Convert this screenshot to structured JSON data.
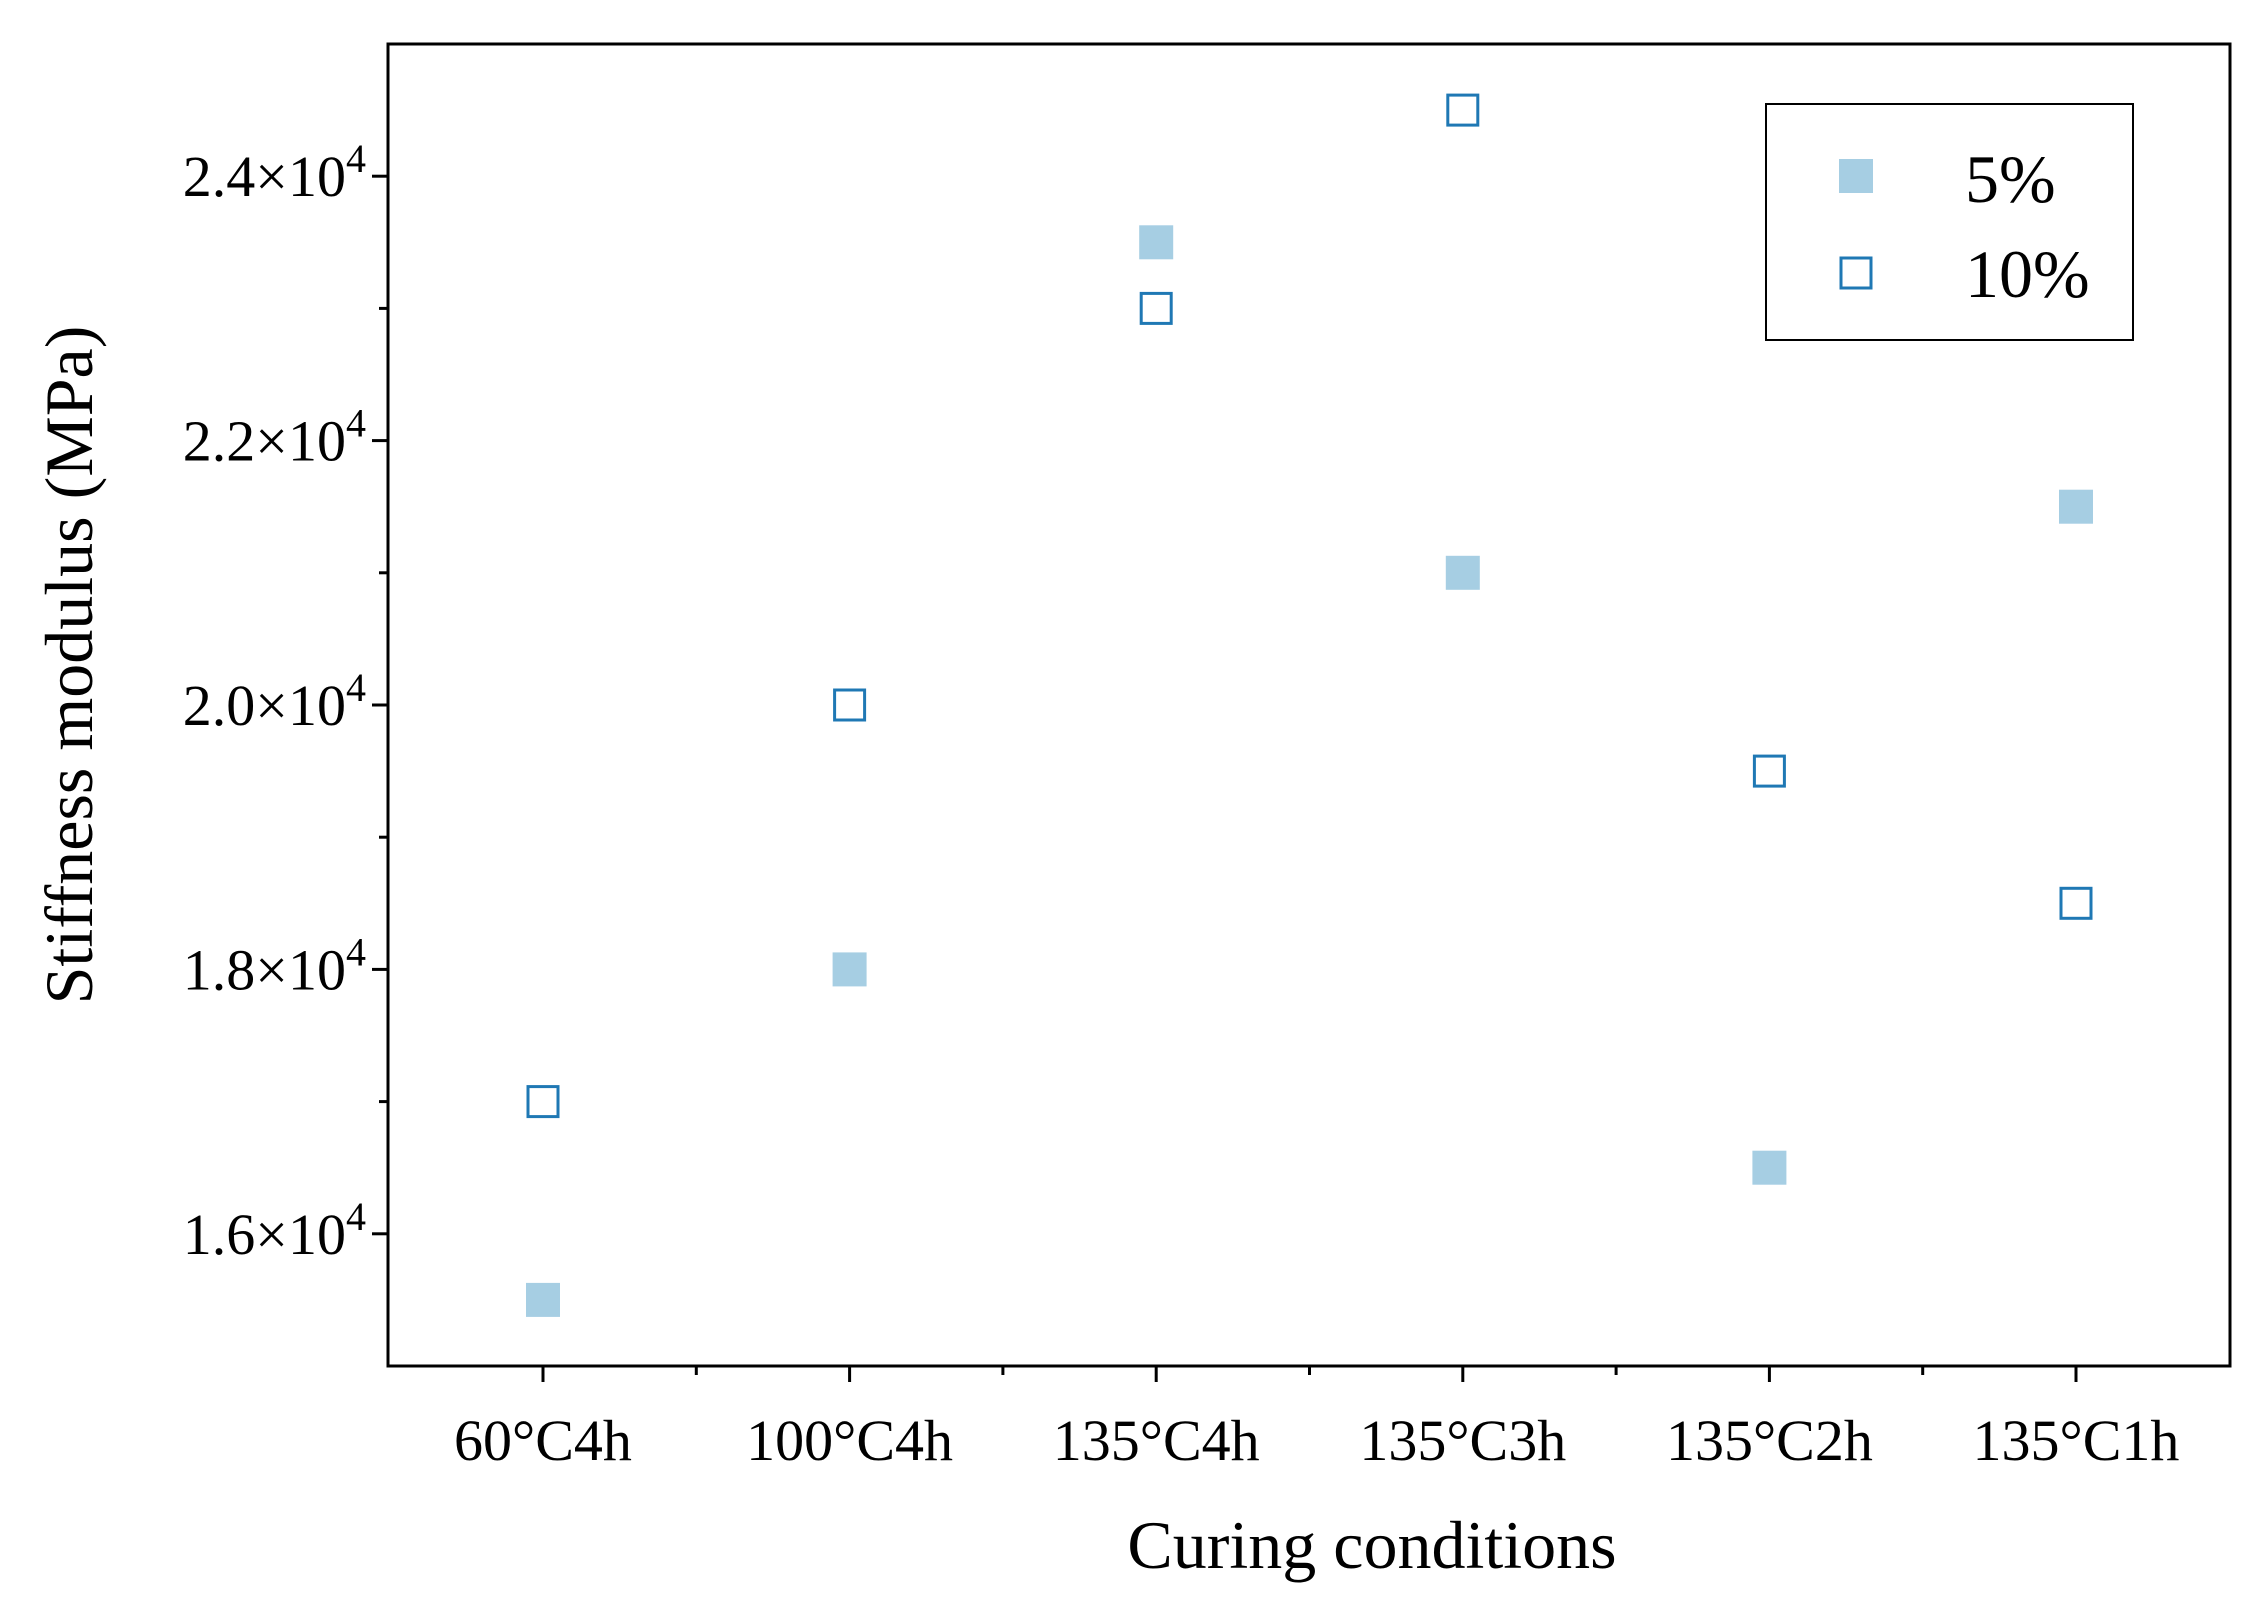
{
  "chart_data": {
    "type": "scatter",
    "title": "",
    "xlabel": "Curing conditions",
    "ylabel": "Stiffness modulus (MPa)",
    "categories": [
      "60°C4h",
      "100°C4h",
      "135°C4h",
      "135°C3h",
      "135°C2h",
      "135°C1h"
    ],
    "ylim": [
      15000,
      25000
    ],
    "y_major_ticks": [
      {
        "value": 16000,
        "mantissa": "1.6",
        "exponent": "4"
      },
      {
        "value": 18000,
        "mantissa": "1.8",
        "exponent": "4"
      },
      {
        "value": 20000,
        "mantissa": "2.0",
        "exponent": "4"
      },
      {
        "value": 22000,
        "mantissa": "2.2",
        "exponent": "4"
      },
      {
        "value": 24000,
        "mantissa": "2.4",
        "exponent": "4"
      }
    ],
    "y_minor_ticks": [
      17000,
      19000,
      21000,
      23000
    ],
    "legend_position": "top-right",
    "series": [
      {
        "name": "5%",
        "marker": "filled-square",
        "color": "#a6cee3",
        "values": [
          15500,
          18000,
          23500,
          21000,
          16500,
          21500
        ]
      },
      {
        "name": "10%",
        "marker": "open-square",
        "color": "#1f78b4",
        "values": [
          17000,
          20000,
          23000,
          24500,
          19500,
          18500
        ]
      }
    ]
  }
}
